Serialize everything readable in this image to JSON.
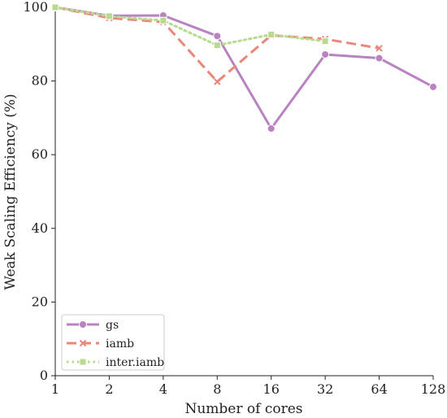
{
  "chart_data": {
    "type": "line",
    "title": "",
    "xlabel": "Number of cores",
    "ylabel": "Weak Scaling Efficiency (%)",
    "x": [
      1,
      2,
      4,
      8,
      16,
      32,
      64,
      128
    ],
    "xscale": "log2",
    "x_tick_labels": [
      "1",
      "2",
      "4",
      "8",
      "16",
      "32",
      "64",
      "128"
    ],
    "xlim": [
      1,
      128
    ],
    "ylim": [
      0,
      100
    ],
    "y_ticks": [
      0,
      20,
      40,
      60,
      80,
      100
    ],
    "y_tick_labels": [
      "0",
      "20",
      "40",
      "60",
      "80",
      "100"
    ],
    "grid": false,
    "legend_position": "bottom-left",
    "series": [
      {
        "name": "gs",
        "color": "#b983c2",
        "line_style": "solid",
        "marker": "circle",
        "x": [
          1,
          2,
          4,
          8,
          16,
          32,
          64,
          128
        ],
        "values": [
          100,
          97.7,
          97.8,
          92.2,
          67.1,
          87.2,
          86.2,
          78.4
        ]
      },
      {
        "name": "iamb",
        "color": "#e8877a",
        "line_style": "dashed",
        "marker": "x",
        "x": [
          1,
          2,
          4,
          8,
          16,
          32,
          64
        ],
        "values": [
          100,
          97.1,
          96.0,
          79.8,
          92.4,
          91.4,
          88.9
        ]
      },
      {
        "name": "inter.iamb",
        "color": "#b8d98e",
        "line_style": "dotted",
        "marker": "square",
        "x": [
          1,
          2,
          4,
          8,
          16,
          32
        ],
        "values": [
          100,
          97.6,
          96.4,
          89.7,
          92.6,
          90.8
        ]
      }
    ]
  }
}
